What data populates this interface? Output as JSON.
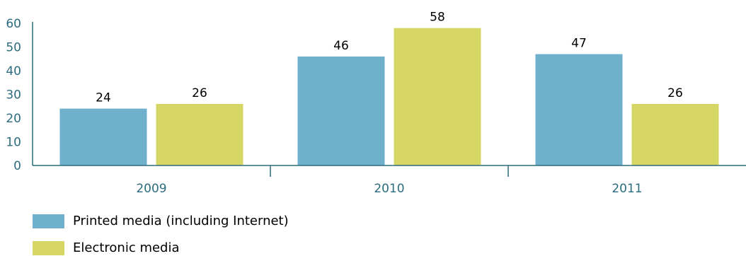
{
  "chart_data": {
    "type": "bar",
    "categories": [
      "2009",
      "2010",
      "2011"
    ],
    "series": [
      {
        "name": "Printed media (including Internet)",
        "values": [
          24,
          46,
          47
        ],
        "color": "#6fb1cc"
      },
      {
        "name": "Electronic media",
        "values": [
          26,
          58,
          26
        ],
        "color": "#d6d664"
      }
    ],
    "y_ticks": [
      "0",
      "10",
      "20",
      "30",
      "40",
      "50",
      "60"
    ],
    "ylim": [
      0,
      60
    ],
    "grid": false,
    "legend_position": "bottom-left",
    "colors": {
      "axis": "#2d6b7f",
      "tick_label": "#2d6b7f",
      "data_label": "#000000"
    }
  }
}
